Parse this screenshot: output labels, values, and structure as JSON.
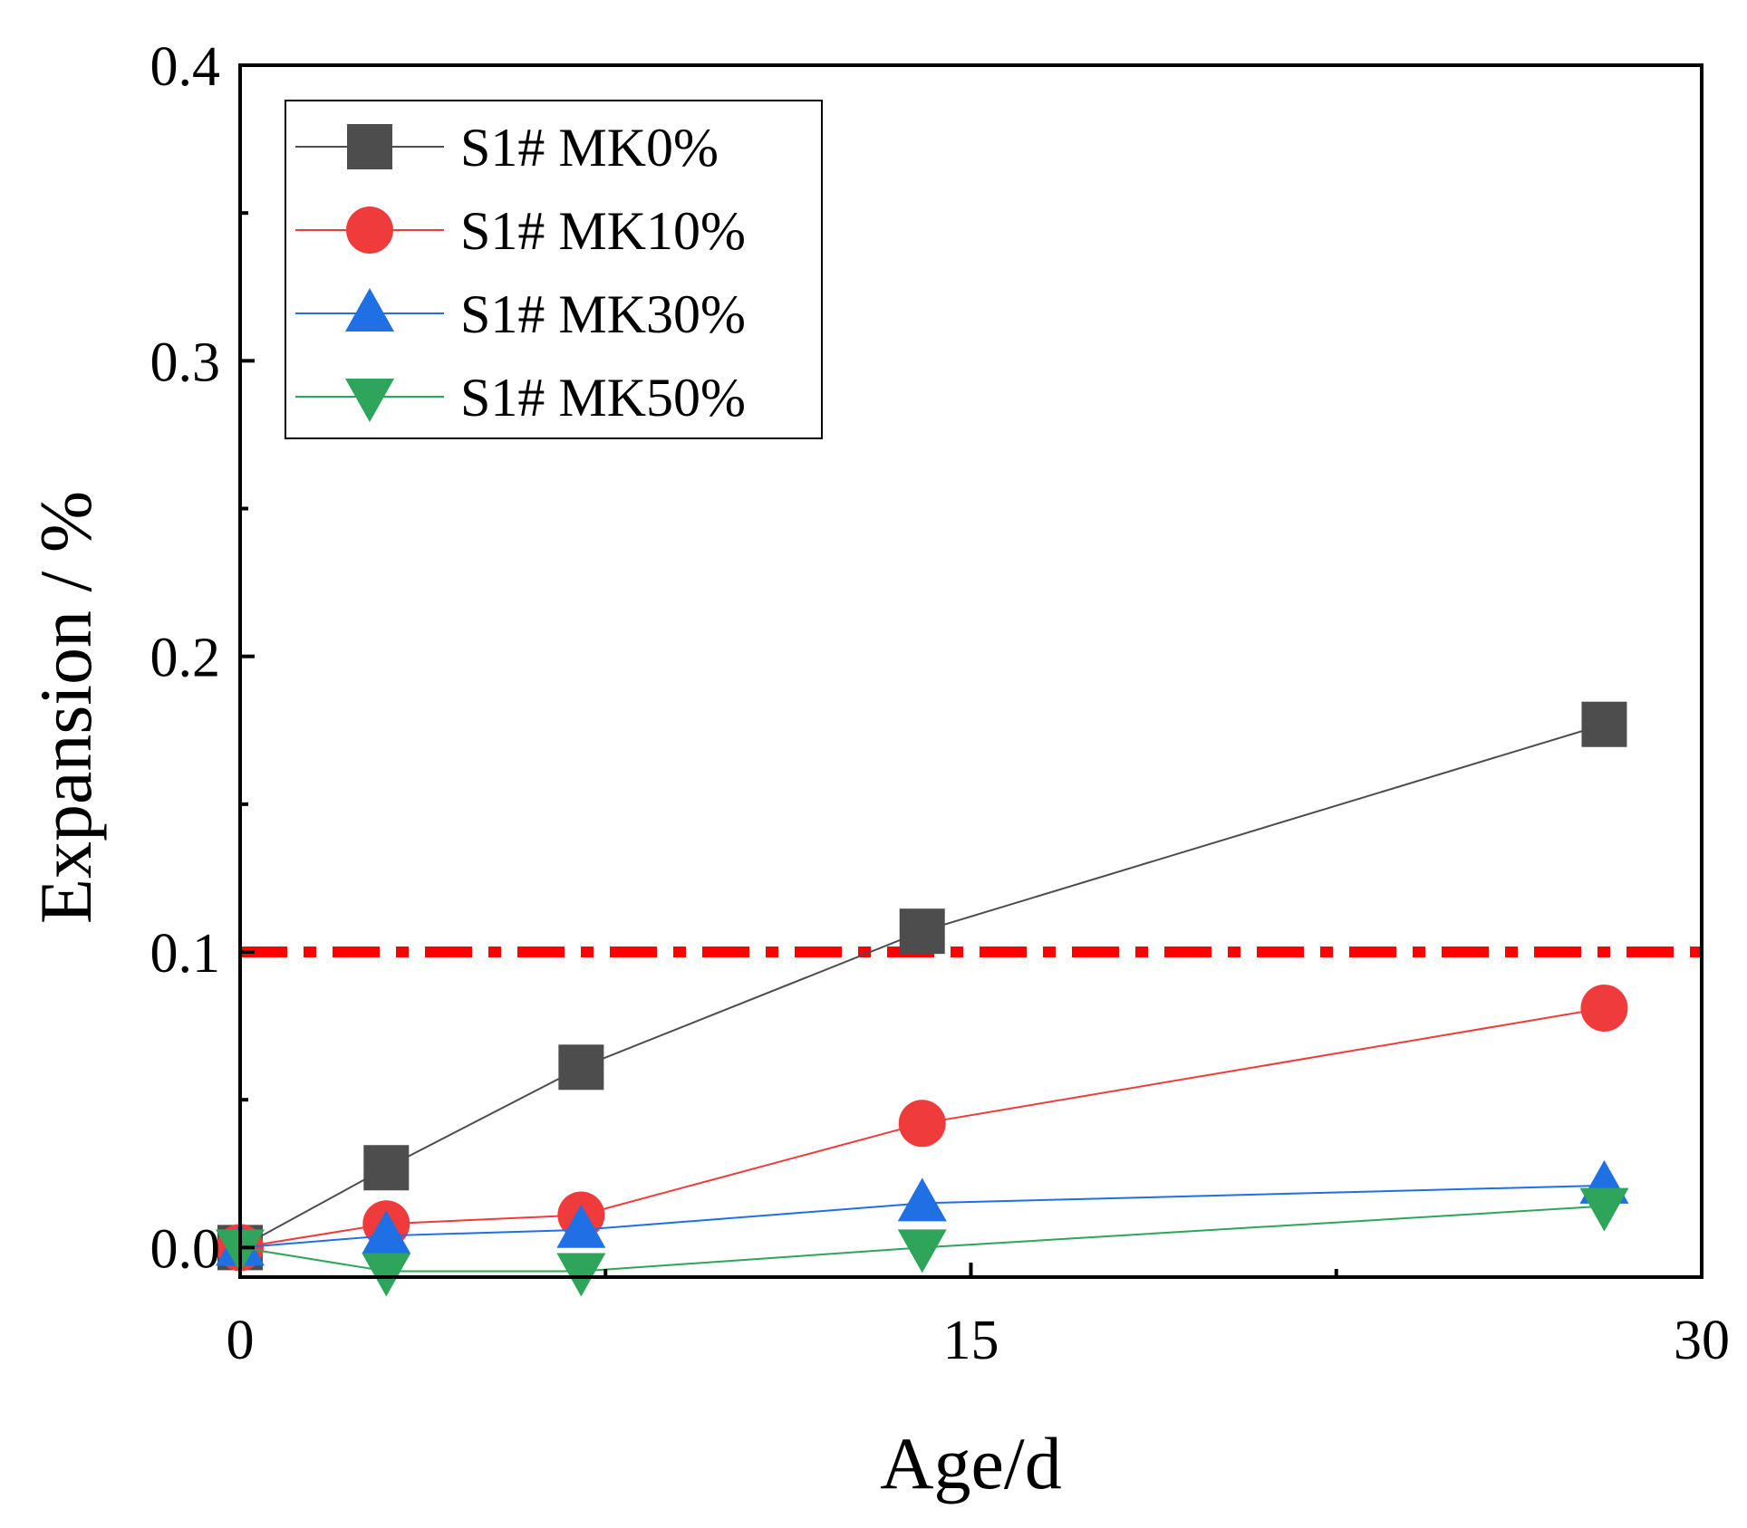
{
  "chart_data": {
    "type": "line",
    "title": "",
    "xlabel": "Age/d",
    "ylabel": "Expansion / %",
    "xlim": [
      0,
      30
    ],
    "ylim": [
      -0.01,
      0.4
    ],
    "xticks": [
      0,
      15,
      30
    ],
    "yticks": [
      0.0,
      0.1,
      0.2,
      0.3,
      0.4
    ],
    "xtick_labels": [
      "0",
      "15",
      "30"
    ],
    "ytick_labels": [
      "0.0",
      "0.1",
      "0.2",
      "0.3",
      "0.4"
    ],
    "grid": false,
    "legend_position": "top-left",
    "series": [
      {
        "name": "S1# MK0%",
        "color": "#4d4d4d",
        "marker": "square",
        "x": [
          0,
          3,
          7,
          14,
          28
        ],
        "y": [
          0.0,
          0.027,
          0.061,
          0.107,
          0.177
        ]
      },
      {
        "name": "S1# MK10%",
        "color": "#ef3b3b",
        "marker": "circle",
        "x": [
          0,
          3,
          7,
          14,
          28
        ],
        "y": [
          0.0,
          0.008,
          0.011,
          0.042,
          0.081
        ]
      },
      {
        "name": "S1# MK30%",
        "color": "#1f6fe5",
        "marker": "triangle-up",
        "x": [
          0,
          3,
          7,
          14,
          28
        ],
        "y": [
          0.0,
          0.004,
          0.006,
          0.015,
          0.021
        ]
      },
      {
        "name": "S1# MK50%",
        "color": "#2ea55a",
        "marker": "triangle-down",
        "x": [
          0,
          3,
          7,
          14,
          28
        ],
        "y": [
          0.0,
          -0.008,
          -0.008,
          0.0,
          0.014
        ]
      }
    ],
    "reference_lines": [
      {
        "axis": "y",
        "value": 0.1,
        "color": "#ff0000",
        "style": "dash-dot"
      }
    ]
  }
}
